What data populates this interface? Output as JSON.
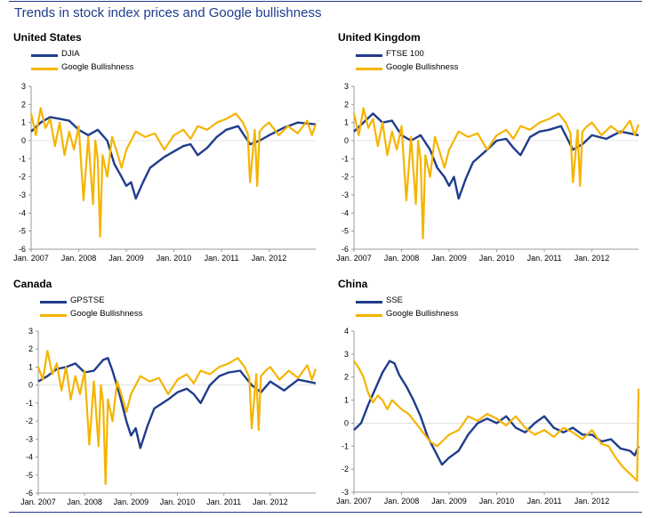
{
  "title": "Trends in stock index prices and Google bullishness",
  "colors": {
    "title": "#1f3c8c",
    "index_series": "#1f3c8c",
    "google_series": "#f5b400",
    "axis": "#9a9a9a"
  },
  "chart_data": [
    {
      "type": "line",
      "title": "United States",
      "legend_position": "top-left",
      "grid": false,
      "x_ticks": [
        "Jan. 2007",
        "Jan. 2008",
        "Jan. 2009",
        "Jan. 2010",
        "Jan. 2011",
        "Jan. 2012"
      ],
      "xlim": [
        2007.0,
        2012.98
      ],
      "ylim": [
        -6,
        3
      ],
      "y_ticks": [
        3,
        2,
        1,
        0,
        -1,
        -2,
        -3,
        -4,
        -5,
        -6
      ],
      "series": [
        {
          "name": "DJIA",
          "color": "#1f3c8c",
          "x": [
            2007.0,
            2007.2,
            2007.4,
            2007.6,
            2007.8,
            2008.0,
            2008.2,
            2008.4,
            2008.6,
            2008.75,
            2008.9,
            2009.0,
            2009.1,
            2009.2,
            2009.35,
            2009.5,
            2009.8,
            2010.0,
            2010.2,
            2010.35,
            2010.5,
            2010.7,
            2010.9,
            2011.1,
            2011.35,
            2011.6,
            2011.8,
            2012.0,
            2012.3,
            2012.6,
            2012.98
          ],
          "values": [
            0.5,
            1.0,
            1.3,
            1.2,
            1.1,
            0.6,
            0.3,
            0.6,
            0.0,
            -1.3,
            -2.0,
            -2.5,
            -2.3,
            -3.2,
            -2.3,
            -1.5,
            -0.9,
            -0.6,
            -0.3,
            -0.2,
            -0.8,
            -0.4,
            0.2,
            0.6,
            0.8,
            -0.2,
            0.0,
            0.3,
            0.7,
            1.0,
            0.9
          ]
        },
        {
          "name": "Google Bullishness",
          "color": "#f5b400",
          "x": [
            2007.0,
            2007.1,
            2007.2,
            2007.3,
            2007.4,
            2007.5,
            2007.6,
            2007.7,
            2007.8,
            2007.9,
            2008.0,
            2008.1,
            2008.2,
            2008.3,
            2008.35,
            2008.4,
            2008.45,
            2008.5,
            2008.6,
            2008.7,
            2008.8,
            2008.9,
            2009.0,
            2009.2,
            2009.4,
            2009.6,
            2009.8,
            2010.0,
            2010.2,
            2010.35,
            2010.5,
            2010.7,
            2010.9,
            2011.1,
            2011.3,
            2011.45,
            2011.55,
            2011.6,
            2011.7,
            2011.75,
            2011.8,
            2011.9,
            2012.0,
            2012.2,
            2012.4,
            2012.6,
            2012.8,
            2012.9,
            2012.98
          ],
          "values": [
            1.5,
            0.3,
            1.8,
            0.7,
            1.2,
            -0.3,
            1.0,
            -0.8,
            0.5,
            -0.5,
            0.8,
            -3.3,
            0.2,
            -3.5,
            0.0,
            -1.0,
            -5.3,
            -0.8,
            -2.0,
            0.2,
            -0.6,
            -1.5,
            -0.5,
            0.5,
            0.2,
            0.4,
            -0.5,
            0.3,
            0.6,
            0.1,
            0.8,
            0.6,
            1.0,
            1.2,
            1.5,
            1.0,
            0.4,
            -2.3,
            0.6,
            -2.5,
            0.5,
            0.8,
            1.0,
            0.3,
            0.8,
            0.4,
            1.1,
            0.3,
            0.9
          ]
        }
      ]
    },
    {
      "type": "line",
      "title": "United Kingdom",
      "legend_position": "top-left",
      "grid": false,
      "x_ticks": [
        "Jan. 2007",
        "Jan. 2008",
        "Jan. 2009",
        "Jan. 2010",
        "Jan. 2011",
        "Jan. 2012"
      ],
      "xlim": [
        2007.0,
        2012.98
      ],
      "ylim": [
        -6,
        3
      ],
      "y_ticks": [
        3,
        2,
        1,
        0,
        -1,
        -2,
        -3,
        -4,
        -5,
        -6
      ],
      "series": [
        {
          "name": "FTSE 100",
          "color": "#1f3c8c",
          "x": [
            2007.0,
            2007.2,
            2007.4,
            2007.6,
            2007.8,
            2008.0,
            2008.2,
            2008.4,
            2008.6,
            2008.75,
            2008.9,
            2009.0,
            2009.1,
            2009.2,
            2009.35,
            2009.5,
            2009.8,
            2010.0,
            2010.2,
            2010.35,
            2010.5,
            2010.7,
            2010.9,
            2011.1,
            2011.35,
            2011.6,
            2011.8,
            2012.0,
            2012.3,
            2012.6,
            2012.98
          ],
          "values": [
            0.5,
            1.0,
            1.5,
            1.0,
            1.1,
            0.3,
            0.0,
            0.3,
            -0.5,
            -1.5,
            -2.0,
            -2.5,
            -2.0,
            -3.2,
            -2.1,
            -1.2,
            -0.5,
            0.0,
            0.1,
            -0.4,
            -0.8,
            0.2,
            0.5,
            0.6,
            0.8,
            -0.5,
            -0.2,
            0.3,
            0.1,
            0.5,
            0.3
          ]
        },
        {
          "name": "Google Bullishness",
          "color": "#f5b400",
          "x": [
            2007.0,
            2007.1,
            2007.2,
            2007.3,
            2007.4,
            2007.5,
            2007.6,
            2007.7,
            2007.8,
            2007.9,
            2008.0,
            2008.1,
            2008.2,
            2008.3,
            2008.35,
            2008.4,
            2008.45,
            2008.5,
            2008.6,
            2008.7,
            2008.8,
            2008.9,
            2009.0,
            2009.2,
            2009.4,
            2009.6,
            2009.8,
            2010.0,
            2010.2,
            2010.35,
            2010.5,
            2010.7,
            2010.9,
            2011.1,
            2011.3,
            2011.45,
            2011.55,
            2011.6,
            2011.7,
            2011.75,
            2011.8,
            2011.9,
            2012.0,
            2012.2,
            2012.4,
            2012.6,
            2012.8,
            2012.9,
            2012.98
          ],
          "values": [
            1.5,
            0.3,
            1.8,
            0.7,
            1.2,
            -0.3,
            1.0,
            -0.8,
            0.5,
            -0.5,
            0.8,
            -3.3,
            0.2,
            -3.5,
            0.0,
            -1.0,
            -5.4,
            -0.8,
            -2.0,
            0.2,
            -0.6,
            -1.5,
            -0.5,
            0.5,
            0.2,
            0.4,
            -0.5,
            0.3,
            0.6,
            0.1,
            0.8,
            0.6,
            1.0,
            1.2,
            1.5,
            1.0,
            0.4,
            -2.3,
            0.6,
            -2.5,
            0.5,
            0.8,
            1.0,
            0.3,
            0.8,
            0.4,
            1.1,
            0.3,
            0.9
          ]
        }
      ]
    },
    {
      "type": "line",
      "title": "Canada",
      "legend_position": "top-left",
      "grid": false,
      "x_ticks": [
        "Jan. 2007",
        "Jan. 2008",
        "Jan. 2009",
        "Jan. 2010",
        "Jan. 2011",
        "Jan. 2012"
      ],
      "xlim": [
        2007.0,
        2012.98
      ],
      "ylim": [
        -6,
        3
      ],
      "y_ticks": [
        3,
        2,
        1,
        0,
        -1,
        -2,
        -3,
        -4,
        -5,
        -6
      ],
      "series": [
        {
          "name": "GPSTSE",
          "color": "#1f3c8c",
          "x": [
            2007.0,
            2007.2,
            2007.4,
            2007.6,
            2007.8,
            2008.0,
            2008.2,
            2008.4,
            2008.5,
            2008.6,
            2008.75,
            2008.9,
            2009.0,
            2009.1,
            2009.2,
            2009.35,
            2009.5,
            2009.8,
            2010.0,
            2010.2,
            2010.35,
            2010.5,
            2010.7,
            2010.9,
            2011.1,
            2011.35,
            2011.6,
            2011.8,
            2012.0,
            2012.3,
            2012.6,
            2012.98
          ],
          "values": [
            0.2,
            0.5,
            0.9,
            1.0,
            1.2,
            0.7,
            0.8,
            1.4,
            1.5,
            0.8,
            -0.5,
            -2.0,
            -2.8,
            -2.4,
            -3.5,
            -2.3,
            -1.3,
            -0.8,
            -0.4,
            -0.2,
            -0.5,
            -1.0,
            0.0,
            0.5,
            0.7,
            0.8,
            0.0,
            -0.4,
            0.2,
            -0.3,
            0.3,
            0.1
          ]
        },
        {
          "name": "Google Bullishness",
          "color": "#f5b400",
          "x": [
            2007.0,
            2007.1,
            2007.2,
            2007.3,
            2007.4,
            2007.5,
            2007.6,
            2007.7,
            2007.8,
            2007.9,
            2008.0,
            2008.1,
            2008.2,
            2008.3,
            2008.35,
            2008.4,
            2008.45,
            2008.5,
            2008.6,
            2008.7,
            2008.8,
            2008.9,
            2009.0,
            2009.2,
            2009.4,
            2009.6,
            2009.8,
            2010.0,
            2010.2,
            2010.35,
            2010.5,
            2010.7,
            2010.9,
            2011.1,
            2011.3,
            2011.45,
            2011.55,
            2011.6,
            2011.7,
            2011.75,
            2011.8,
            2011.9,
            2012.0,
            2012.2,
            2012.4,
            2012.6,
            2012.8,
            2012.9,
            2012.98
          ],
          "values": [
            1.0,
            0.3,
            1.9,
            0.6,
            1.2,
            -0.3,
            1.0,
            -0.8,
            0.5,
            -0.5,
            0.8,
            -3.3,
            0.2,
            -3.4,
            0.0,
            -1.0,
            -5.5,
            -0.8,
            -2.0,
            0.2,
            -0.6,
            -1.5,
            -0.5,
            0.5,
            0.2,
            0.4,
            -0.5,
            0.3,
            0.6,
            0.1,
            0.8,
            0.6,
            1.0,
            1.2,
            1.5,
            1.0,
            0.4,
            -2.4,
            0.6,
            -2.5,
            0.5,
            0.8,
            1.0,
            0.3,
            0.8,
            0.4,
            1.1,
            0.3,
            0.9
          ]
        }
      ]
    },
    {
      "type": "line",
      "title": "China",
      "legend_position": "top-left",
      "grid": false,
      "x_ticks": [
        "Jan. 2007",
        "Jan. 2008",
        "Jan. 2009",
        "Jan. 2010",
        "Jan. 2011",
        "Jan. 2012"
      ],
      "xlim": [
        2007.0,
        2012.98
      ],
      "ylim": [
        -3,
        4
      ],
      "y_ticks": [
        4,
        3,
        2,
        1,
        0,
        -1,
        -2,
        -3
      ],
      "series": [
        {
          "name": "SSE",
          "color": "#1f3c8c",
          "x": [
            2007.0,
            2007.15,
            2007.3,
            2007.45,
            2007.6,
            2007.75,
            2007.85,
            2007.95,
            2008.1,
            2008.25,
            2008.4,
            2008.55,
            2008.7,
            2008.85,
            2009.0,
            2009.2,
            2009.4,
            2009.6,
            2009.8,
            2010.0,
            2010.2,
            2010.4,
            2010.6,
            2010.8,
            2011.0,
            2011.2,
            2011.4,
            2011.6,
            2011.8,
            2012.0,
            2012.2,
            2012.4,
            2012.6,
            2012.8,
            2012.9,
            2012.98
          ],
          "values": [
            -0.3,
            0.0,
            0.8,
            1.5,
            2.2,
            2.7,
            2.6,
            2.1,
            1.6,
            1.0,
            0.3,
            -0.6,
            -1.2,
            -1.8,
            -1.5,
            -1.2,
            -0.5,
            0.0,
            0.2,
            0.0,
            0.3,
            -0.2,
            -0.4,
            0.0,
            0.3,
            -0.2,
            -0.4,
            -0.2,
            -0.5,
            -0.5,
            -0.8,
            -0.7,
            -1.1,
            -1.2,
            -1.4,
            -1.0
          ]
        },
        {
          "name": "Google Bullishness",
          "color": "#f5b400",
          "x": [
            2007.0,
            2007.1,
            2007.2,
            2007.3,
            2007.4,
            2007.5,
            2007.6,
            2007.7,
            2007.8,
            2007.9,
            2008.0,
            2008.15,
            2008.3,
            2008.45,
            2008.6,
            2008.75,
            2008.9,
            2009.0,
            2009.2,
            2009.4,
            2009.6,
            2009.8,
            2010.0,
            2010.2,
            2010.4,
            2010.6,
            2010.8,
            2011.0,
            2011.2,
            2011.4,
            2011.6,
            2011.8,
            2012.0,
            2012.2,
            2012.35,
            2012.5,
            2012.65,
            2012.8,
            2012.9,
            2012.95,
            2012.98
          ],
          "values": [
            2.7,
            2.4,
            2.0,
            1.3,
            0.9,
            1.2,
            1.0,
            0.6,
            1.0,
            0.8,
            0.6,
            0.4,
            0.0,
            -0.4,
            -0.8,
            -1.0,
            -0.7,
            -0.5,
            -0.3,
            0.3,
            0.1,
            0.4,
            0.2,
            -0.1,
            0.3,
            -0.2,
            -0.5,
            -0.3,
            -0.6,
            -0.2,
            -0.4,
            -0.7,
            -0.3,
            -0.9,
            -1.0,
            -1.5,
            -1.9,
            -2.2,
            -2.4,
            -2.5,
            1.5
          ]
        }
      ]
    }
  ]
}
